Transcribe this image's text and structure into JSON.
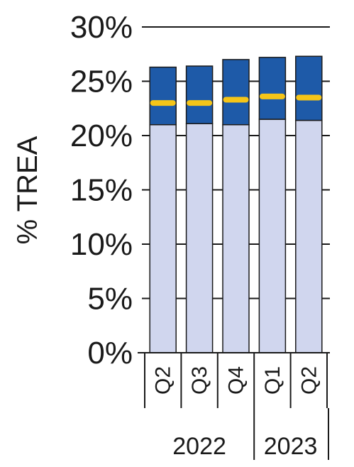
{
  "chart_data": {
    "type": "bar",
    "stacked": true,
    "ylabel": "% TREA",
    "xlabel": "",
    "ylim": [
      0,
      30
    ],
    "yticks": [
      {
        "value": 0,
        "label": "0%"
      },
      {
        "value": 5,
        "label": "5%"
      },
      {
        "value": 10,
        "label": "10%"
      },
      {
        "value": 15,
        "label": "15%"
      },
      {
        "value": 20,
        "label": "20%"
      },
      {
        "value": 25,
        "label": "25%"
      },
      {
        "value": 30,
        "label": "30%"
      }
    ],
    "categories": [
      "Q2",
      "Q3",
      "Q4",
      "Q1",
      "Q2"
    ],
    "year_groups": [
      {
        "label": "2022",
        "count": 3
      },
      {
        "label": "2023",
        "count": 2
      }
    ],
    "series": [
      {
        "values": [
          21.0,
          21.1,
          21.0,
          21.5,
          21.4
        ],
        "color": "#d0d6ee"
      },
      {
        "values": [
          5.3,
          5.3,
          6.0,
          5.7,
          5.9
        ],
        "color": "#1e5aa8"
      }
    ],
    "marker_series": {
      "values": [
        23.0,
        23.0,
        23.3,
        23.6,
        23.5
      ],
      "color": "#f5c518"
    },
    "grid": true,
    "legend": "none"
  }
}
